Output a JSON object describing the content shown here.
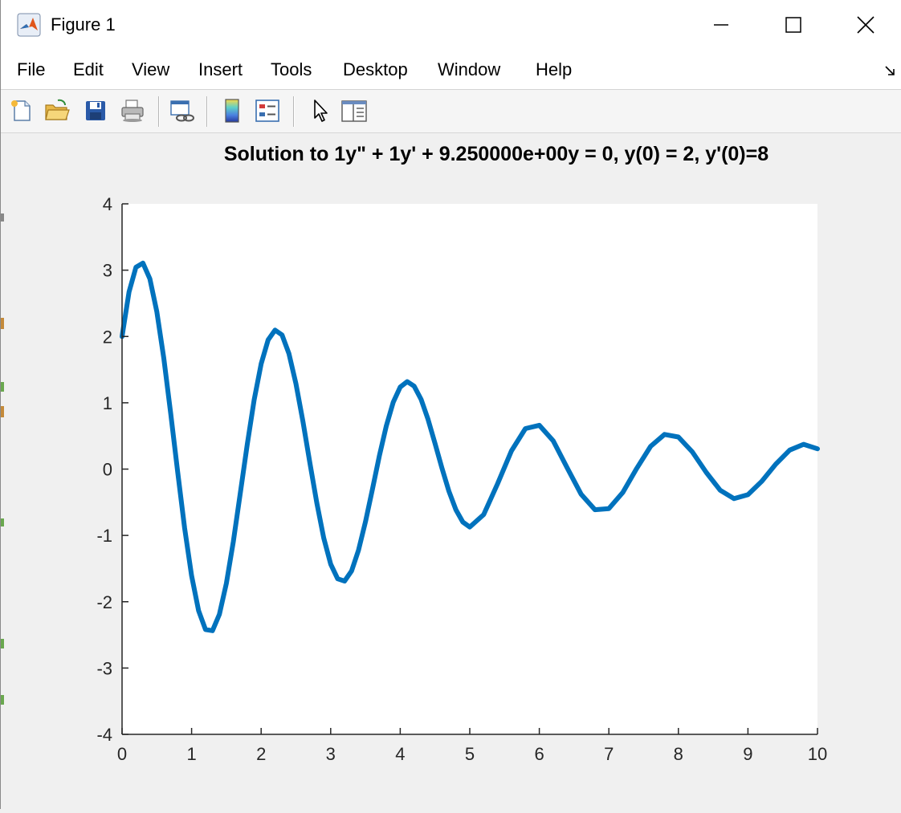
{
  "window": {
    "title": "Figure 1",
    "controls": {
      "minimize": "minimize",
      "maximize": "maximize",
      "close": "close"
    }
  },
  "menu": {
    "items": [
      "File",
      "Edit",
      "View",
      "Insert",
      "Tools",
      "Desktop",
      "Window",
      "Help"
    ]
  },
  "toolbar": {
    "tools": [
      "new-figure-icon",
      "open-file-icon",
      "save-icon",
      "print-icon",
      "link-plot-icon",
      "colorbar-icon",
      "legend-icon",
      "pointer-icon",
      "property-inspector-icon"
    ]
  },
  "colors": {
    "line": "#0072BD",
    "axes_bg": "#ffffff",
    "figure_bg": "#f0f0f0",
    "tick_text": "#262626"
  },
  "chart_data": {
    "type": "line",
    "title": "Solution to 1y\" + 1y' + 9.250000e+00y = 0, y(0) = 2, y'(0)=8",
    "xlabel": "",
    "ylabel": "",
    "xlim": [
      0,
      10
    ],
    "ylim": [
      -4,
      4
    ],
    "xticks": [
      0,
      1,
      2,
      3,
      4,
      5,
      6,
      7,
      8,
      9,
      10
    ],
    "yticks": [
      -4,
      -3,
      -2,
      -1,
      0,
      1,
      2,
      3,
      4
    ],
    "grid": false,
    "series": [
      {
        "x": [
          0,
          0.1,
          0.2,
          0.3,
          0.4,
          0.5,
          0.6,
          0.7,
          0.8,
          0.9,
          1.0,
          1.1,
          1.2,
          1.3,
          1.4,
          1.5,
          1.6,
          1.7,
          1.8,
          1.9,
          2.0,
          2.1,
          2.2,
          2.3,
          2.4,
          2.5,
          2.6,
          2.7,
          2.8,
          2.9,
          3.0,
          3.1,
          3.2,
          3.3,
          3.4,
          3.5,
          3.6,
          3.7,
          3.8,
          3.9,
          4.0,
          4.1,
          4.2,
          4.3,
          4.4,
          4.5,
          4.6,
          4.7,
          4.8,
          4.9,
          5.0,
          5.2,
          5.4,
          5.6,
          5.8,
          6.0,
          6.2,
          6.4,
          6.6,
          6.8,
          7.0,
          7.2,
          7.4,
          7.6,
          7.8,
          8.0,
          8.2,
          8.4,
          8.6,
          8.8,
          9.0,
          9.2,
          9.4,
          9.6,
          9.8,
          10.0
        ],
        "y": [
          2.0,
          2.672,
          3.044,
          3.107,
          2.871,
          2.373,
          1.67,
          0.836,
          -0.047,
          -0.889,
          -1.609,
          -2.135,
          -2.419,
          -2.436,
          -2.191,
          -1.724,
          -1.09,
          -0.366,
          0.372,
          1.045,
          1.587,
          1.948,
          2.096,
          2.023,
          1.742,
          1.29,
          0.721,
          0.099,
          -0.508,
          -1.037,
          -1.433,
          -1.655,
          -1.688,
          -1.536,
          -1.225,
          -0.795,
          -0.302,
          0.199,
          0.652,
          1.009,
          1.238,
          1.319,
          1.252,
          1.052,
          0.751,
          0.389,
          0.013,
          -0.333,
          -0.612,
          -0.797,
          -0.874,
          -0.686,
          -0.222,
          0.277,
          0.611,
          0.661,
          0.426,
          0.02,
          -0.378,
          -0.613,
          -0.596,
          -0.354,
          0.009,
          0.344,
          0.523,
          0.484,
          0.26,
          -0.048,
          -0.318,
          -0.445,
          -0.386,
          -0.183,
          0.074,
          0.287,
          0.374,
          0.306
        ],
        "color": "#0072BD"
      }
    ]
  }
}
